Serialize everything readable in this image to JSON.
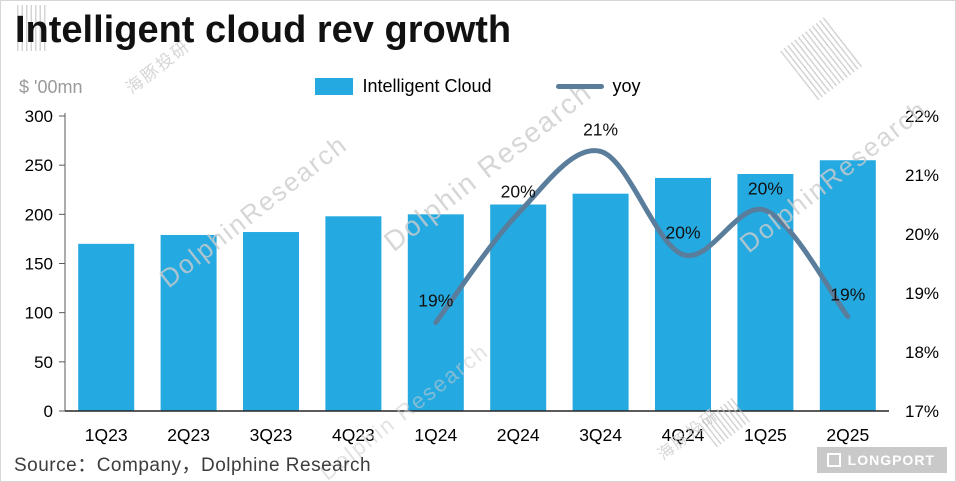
{
  "title": "Intelligent cloud rev growth",
  "unit_label": "$ '00mn",
  "legend": {
    "bar_label": "Intelligent Cloud",
    "line_label": "yoy"
  },
  "source": "Source：Company，Dolphine Research",
  "watermark": {
    "en": "Dolphin Research",
    "en_joined": "DolphinResearch",
    "cn": "海豚投研",
    "brand": "LONGPORT"
  },
  "colors": {
    "bar": "#25A9E1",
    "line": "#5A7D9C",
    "text": "#000000"
  },
  "chart_data": {
    "type": "bar+line",
    "title": "Intelligent cloud rev growth",
    "unit": "$ '00mn",
    "categories": [
      "1Q23",
      "2Q23",
      "3Q23",
      "4Q23",
      "1Q24",
      "2Q24",
      "3Q24",
      "4Q24",
      "1Q25",
      "2Q25"
    ],
    "series": [
      {
        "name": "Intelligent Cloud",
        "type": "bar",
        "axis": "left",
        "values": [
          170,
          179,
          182,
          198,
          200,
          210,
          221,
          237,
          241,
          255
        ]
      },
      {
        "name": "yoy",
        "type": "line",
        "axis": "right",
        "values": [
          null,
          null,
          null,
          null,
          18.5,
          20.35,
          21.4,
          19.65,
          20.4,
          18.6
        ],
        "labels": [
          null,
          null,
          null,
          null,
          "19%",
          "20%",
          "21%",
          "20%",
          "20%",
          "19%"
        ]
      }
    ],
    "y_left": {
      "min": 0,
      "max": 300,
      "ticks": [
        0,
        50,
        100,
        150,
        200,
        250,
        300
      ]
    },
    "y_right": {
      "min": 17,
      "max": 22,
      "ticks": [
        "17%",
        "18%",
        "19%",
        "20%",
        "21%",
        "22%"
      ]
    },
    "grid": false,
    "legend_position": "top-center"
  }
}
